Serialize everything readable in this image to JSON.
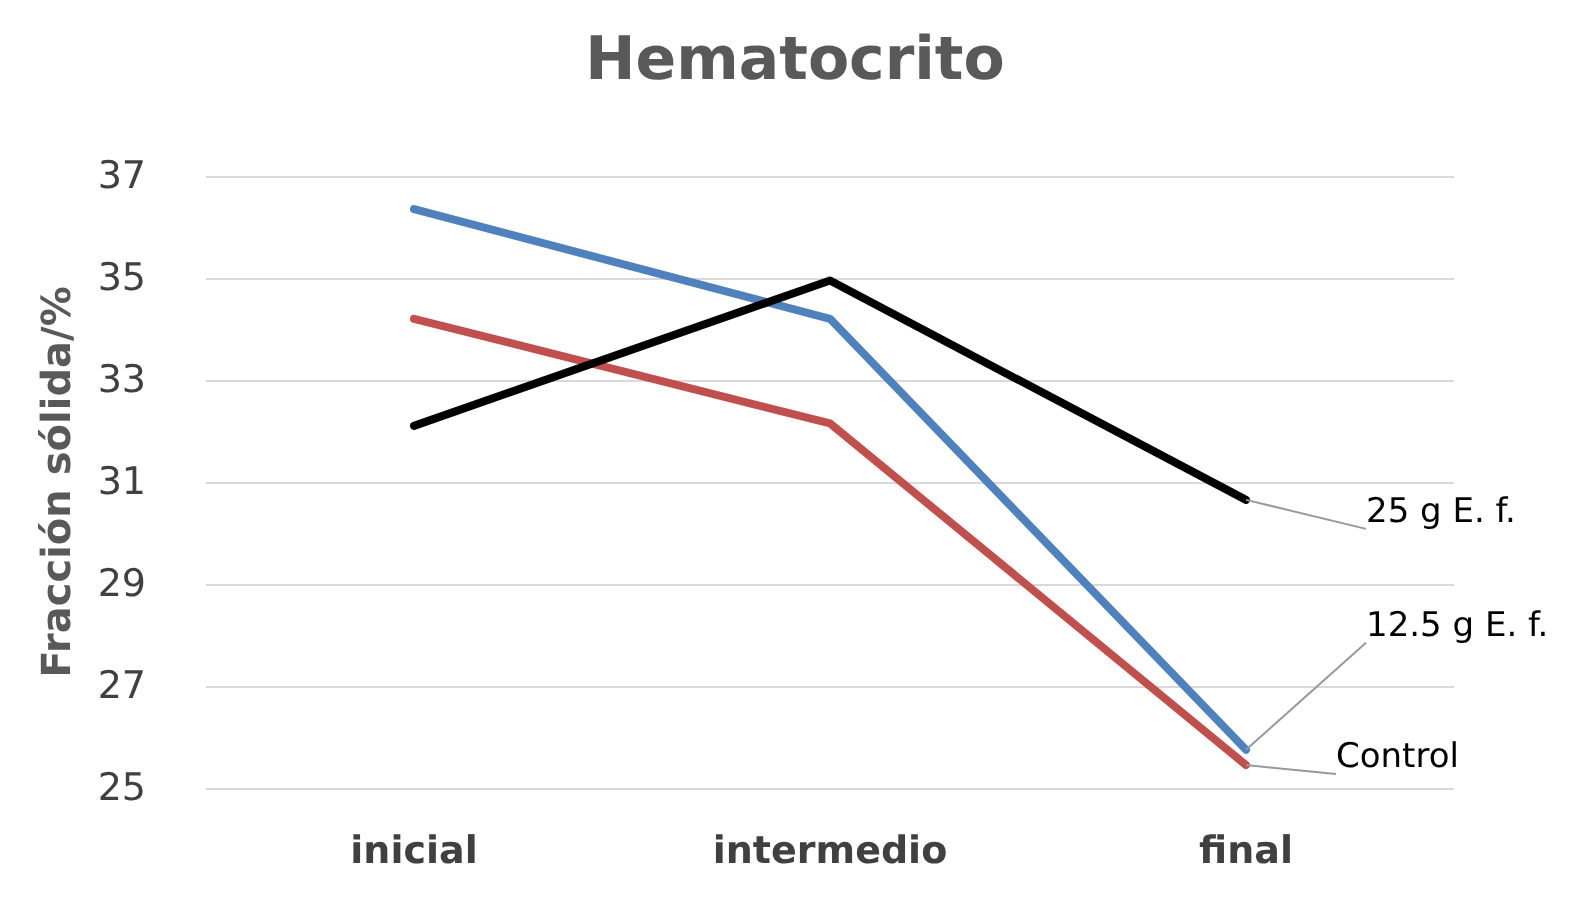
{
  "chart_data": {
    "type": "line",
    "title": "Hematocrito",
    "ylabel": "Fracción sólida/%",
    "categories": [
      "inicial",
      "intermedio",
      "final"
    ],
    "series": [
      {
        "name": "12.5 g E. f.",
        "color": "#4f81bd",
        "values": [
          36.35,
          34.2,
          25.75
        ]
      },
      {
        "name": "Control",
        "color": "#c0504d",
        "values": [
          34.2,
          32.15,
          25.45
        ]
      },
      {
        "name": "25 g E. f.",
        "color": "#000000",
        "values": [
          32.1,
          34.95,
          30.65
        ]
      }
    ],
    "ylim": [
      25,
      37
    ],
    "yticks": [
      25,
      27,
      29,
      31,
      33,
      35,
      37
    ],
    "grid": "y",
    "legend": false,
    "marker": "none",
    "line_style": "solid"
  }
}
